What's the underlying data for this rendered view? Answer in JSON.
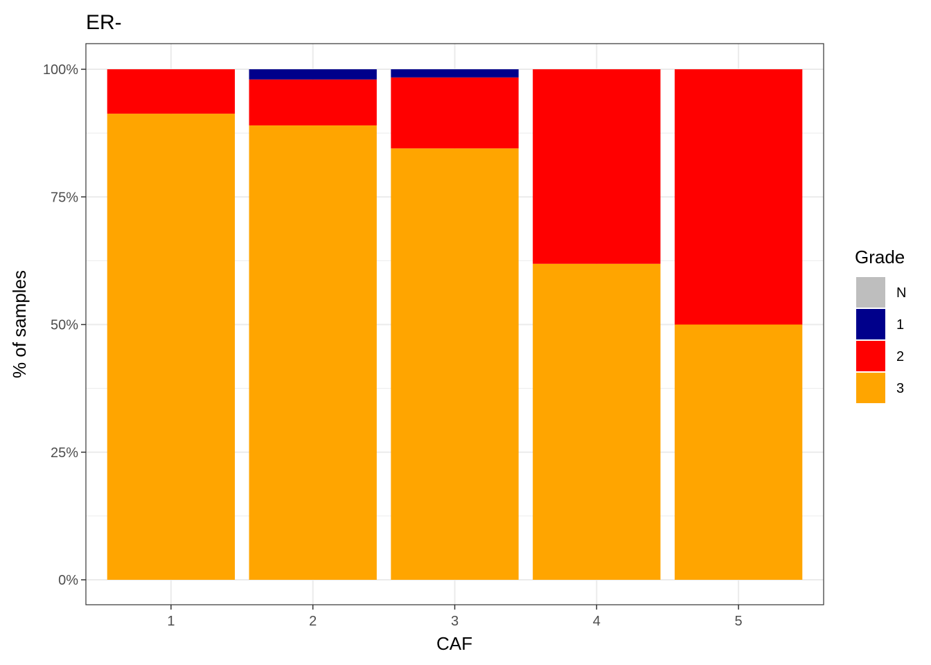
{
  "chart_data": {
    "type": "bar",
    "stacked": "percent",
    "title": "ER-",
    "xlabel": "CAF",
    "ylabel": "% of samples",
    "categories": [
      "1",
      "2",
      "3",
      "4",
      "5"
    ],
    "series": [
      {
        "name": "3",
        "color": "#FFA500",
        "values": [
          91.3,
          89.0,
          84.5,
          61.9,
          50.0
        ]
      },
      {
        "name": "2",
        "color": "#FF0000",
        "values": [
          8.7,
          9.0,
          13.9,
          38.1,
          50.0
        ]
      },
      {
        "name": "1",
        "color": "#00008B",
        "values": [
          0.0,
          2.0,
          1.6,
          0.0,
          0.0
        ]
      },
      {
        "name": "N",
        "color": "#BEBEBE",
        "values": [
          0.0,
          0.0,
          0.0,
          0.0,
          0.0
        ]
      }
    ],
    "ylim": [
      0,
      100
    ],
    "yticks": [
      0,
      25,
      50,
      75,
      100
    ],
    "ytick_labels": [
      "0%",
      "25%",
      "50%",
      "75%",
      "100%"
    ],
    "grid": true,
    "legend": {
      "title": "Grade",
      "placement": "right",
      "entries": [
        {
          "label": "N",
          "color": "#BEBEBE"
        },
        {
          "label": "1",
          "color": "#00008B"
        },
        {
          "label": "2",
          "color": "#FF0000"
        },
        {
          "label": "3",
          "color": "#FFA500"
        }
      ]
    }
  }
}
